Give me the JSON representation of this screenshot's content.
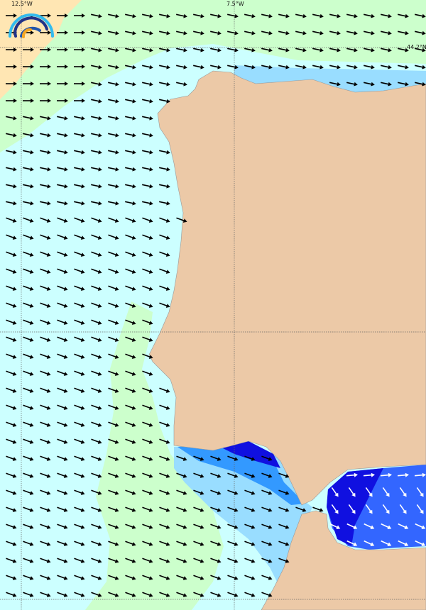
{
  "map": {
    "graticule_labels": {
      "lon_west": "12.5°W",
      "lon_east": "7.5°W",
      "lat_north": "44.2°N"
    },
    "logo_icon": "rainbow-arcs-logo",
    "colors": {
      "land": "#ecc9a7",
      "sea_pale_cyan": "#ccffff",
      "sea_pale_green": "#ccffcc",
      "sea_pale_orange": "#ffe6b3",
      "sea_light_blue": "#99ddff",
      "sea_mid_blue": "#3399ff",
      "sea_dark_blue": "#1010e0",
      "arrow_ocean": "#000000",
      "arrow_med": "#ffffff"
    }
  }
}
